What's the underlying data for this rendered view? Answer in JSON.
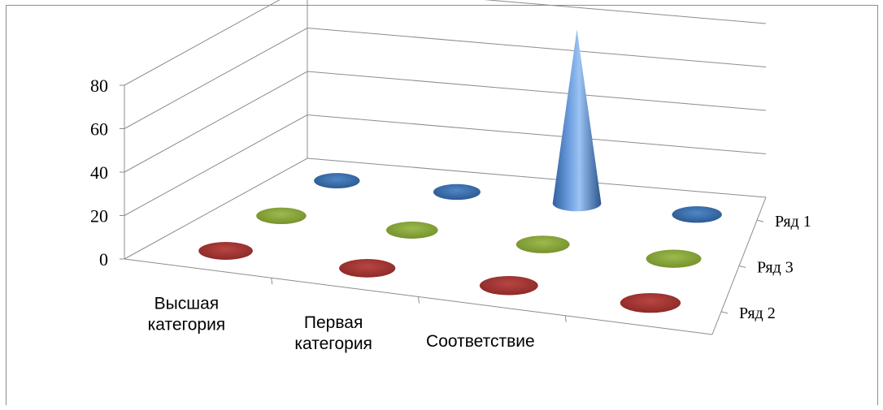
{
  "chart_data": {
    "type": "3d-cone-column",
    "categories": [
      "Высшая категория",
      "Первая категория",
      "Соответствие",
      ""
    ],
    "categories_display": [
      [
        "Высшая",
        "категория"
      ],
      [
        "Первая",
        "категория"
      ],
      [
        "Соответствие"
      ],
      [
        ""
      ]
    ],
    "series": [
      {
        "name": "Ряд 1",
        "values": [
          0,
          0,
          80,
          0
        ],
        "color": "#4a7ebb"
      },
      {
        "name": "Ряд 3",
        "values": [
          0,
          0,
          0,
          0
        ],
        "color": "#8fa83c"
      },
      {
        "name": "Ряд 2",
        "values": [
          0,
          0,
          0,
          0
        ],
        "color": "#a33533"
      }
    ],
    "y_ticks": [
      "0",
      "20",
      "40",
      "60",
      "80"
    ],
    "ylim": [
      0,
      80
    ],
    "grid": true,
    "legend": "none",
    "title": "",
    "xlabel": "",
    "ylabel": ""
  }
}
